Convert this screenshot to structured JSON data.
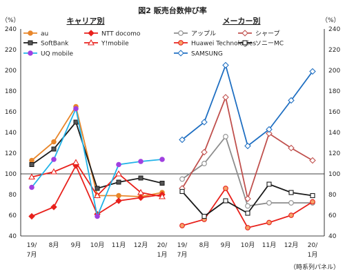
{
  "title": "図2 販売台数伸び率",
  "footnote": "（時系列パネル）",
  "left_unit": "（%）",
  "right_unit": "（%）",
  "chart_data": [
    {
      "type": "line",
      "subtitle": "キャリア別",
      "categories": [
        "19/7月",
        "8月",
        "9月",
        "10月",
        "11月",
        "12月",
        "20/1月"
      ],
      "ylim": [
        40,
        240
      ],
      "yticks": [
        40,
        60,
        80,
        100,
        120,
        140,
        160,
        180,
        200,
        220,
        240
      ],
      "reference_line": 100,
      "grid": false,
      "legend_position": "top",
      "series": [
        {
          "name": "au",
          "color": "#E8862A",
          "marker": "circle-filled",
          "values": [
            113,
            131,
            165,
            79,
            79,
            78,
            82
          ]
        },
        {
          "name": "NTT docomo",
          "color": "#E8211C",
          "marker": "diamond-filled",
          "values": [
            59,
            68,
            108,
            61,
            74,
            77,
            80
          ]
        },
        {
          "name": "SoftBank",
          "color": "#1A1A1A",
          "marker": "square-filled",
          "values": [
            109,
            124,
            150,
            86,
            92,
            96,
            91
          ]
        },
        {
          "name": "Y!mobile",
          "color": "#E8211C",
          "marker": "triangle-open",
          "values": [
            97,
            102,
            111,
            79,
            100,
            82,
            78
          ]
        },
        {
          "name": "UQ mobile",
          "color": "#21B3E8",
          "marker": "circle-magenta",
          "values": [
            87,
            114,
            163,
            59,
            109,
            112,
            114
          ]
        }
      ]
    },
    {
      "type": "line",
      "subtitle": "メーカー別",
      "categories": [
        "19/7月",
        "8月",
        "9月",
        "10月",
        "11月",
        "12月",
        "20/1月"
      ],
      "ylim": [
        40,
        240
      ],
      "yticks": [
        40,
        60,
        80,
        100,
        120,
        140,
        160,
        180,
        200,
        220,
        240
      ],
      "reference_line": 100,
      "grid": false,
      "legend_position": "top",
      "series": [
        {
          "name": "アップル",
          "color": "#8C8C8C",
          "marker": "circle-open",
          "values": [
            95,
            110,
            136,
            69,
            72,
            72,
            72
          ]
        },
        {
          "name": "シャープ",
          "color": "#C0504D",
          "marker": "diamond-open",
          "values": [
            86,
            121,
            174,
            76,
            139,
            125,
            113
          ]
        },
        {
          "name": "Huawei Technologies",
          "color": "#E8211C",
          "marker": "circle-orange",
          "values": [
            50,
            56,
            86,
            48,
            53,
            60,
            73
          ]
        },
        {
          "name": "ソニーMC",
          "color": "#1A1A1A",
          "marker": "square-open",
          "values": [
            83,
            59,
            74,
            62,
            90,
            82,
            79
          ]
        },
        {
          "name": "SAMSUNG",
          "color": "#1F6FC2",
          "marker": "diamond-open-blue",
          "values": [
            133,
            150,
            205,
            127,
            143,
            171,
            199
          ]
        }
      ]
    }
  ]
}
